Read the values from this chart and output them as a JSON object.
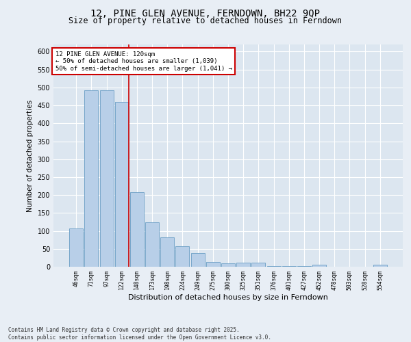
{
  "title": "12, PINE GLEN AVENUE, FERNDOWN, BH22 9QP",
  "subtitle": "Size of property relative to detached houses in Ferndown",
  "xlabel": "Distribution of detached houses by size in Ferndown",
  "ylabel": "Number of detached properties",
  "categories": [
    "46sqm",
    "71sqm",
    "97sqm",
    "122sqm",
    "148sqm",
    "173sqm",
    "198sqm",
    "224sqm",
    "249sqm",
    "275sqm",
    "300sqm",
    "325sqm",
    "351sqm",
    "376sqm",
    "401sqm",
    "427sqm",
    "452sqm",
    "478sqm",
    "503sqm",
    "528sqm",
    "554sqm"
  ],
  "values": [
    107,
    492,
    492,
    460,
    207,
    124,
    82,
    57,
    38,
    14,
    9,
    11,
    11,
    2,
    1,
    1,
    5,
    0,
    0,
    0,
    5
  ],
  "bar_color": "#b8cfe8",
  "bar_edge_color": "#6a9ec5",
  "vline_x_index": 3,
  "vline_color": "#cc0000",
  "annotation_title": "12 PINE GLEN AVENUE: 120sqm",
  "annotation_line1": "← 50% of detached houses are smaller (1,039)",
  "annotation_line2": "50% of semi-detached houses are larger (1,041) →",
  "annotation_box_color": "#cc0000",
  "ylim": [
    0,
    620
  ],
  "yticks": [
    0,
    50,
    100,
    150,
    200,
    250,
    300,
    350,
    400,
    450,
    500,
    550,
    600
  ],
  "bg_color": "#e8eef5",
  "plot_bg_color": "#dce6f0",
  "footer": "Contains HM Land Registry data © Crown copyright and database right 2025.\nContains public sector information licensed under the Open Government Licence v3.0.",
  "title_fontsize": 10,
  "subtitle_fontsize": 8.5,
  "xlabel_fontsize": 8,
  "ylabel_fontsize": 7.5
}
